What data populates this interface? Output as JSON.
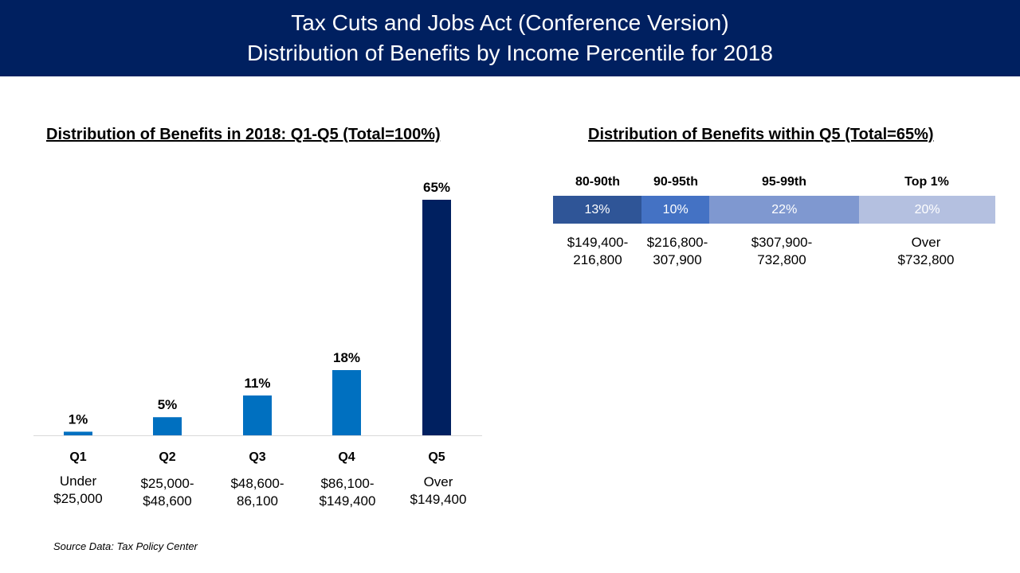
{
  "header": {
    "title_line1": "Tax Cuts and Jobs Act (Conference Version)",
    "title_line2": "Distribution of Benefits by Income Percentile for 2018"
  },
  "left_chart": {
    "title": "Distribution of Benefits in 2018: Q1-Q5 (Total=100%)",
    "ranges": [
      [
        "Under",
        "$25,000"
      ],
      [
        "$25,000-",
        "$48,600"
      ],
      [
        "$48,600-",
        "86,100"
      ],
      [
        "$86,100-",
        "$149,400"
      ],
      [
        "Over",
        "$149,400"
      ]
    ]
  },
  "right_chart": {
    "title": "Distribution of Benefits within Q5 (Total=65%)",
    "segments": [
      {
        "label": "80-90th",
        "value_label": "13%",
        "range_line1": "$149,400-",
        "range_line2": "216,800"
      },
      {
        "label": "90-95th",
        "value_label": "10%",
        "range_line1": "$216,800-",
        "range_line2": "307,900"
      },
      {
        "label": "95-99th",
        "value_label": "22%",
        "range_line1": "$307,900-",
        "range_line2": "732,800"
      },
      {
        "label": "Top 1%",
        "value_label": "20%",
        "range_line1": "Over",
        "range_line2": "$732,800"
      }
    ]
  },
  "chart_data": [
    {
      "type": "bar",
      "title": "Distribution of Benefits in 2018: Q1-Q5 (Total=100%)",
      "categories": [
        "Q1",
        "Q2",
        "Q3",
        "Q4",
        "Q5"
      ],
      "values": [
        1,
        5,
        11,
        18,
        65
      ],
      "value_labels": [
        "1%",
        "5%",
        "11%",
        "18%",
        "65%"
      ],
      "ylim": [
        0,
        65
      ],
      "grid": false,
      "colors": [
        "#0070C0",
        "#0070C0",
        "#0070C0",
        "#0070C0",
        "#002060"
      ]
    },
    {
      "type": "bar",
      "orientation": "horizontal-stacked",
      "title": "Distribution of Benefits within Q5 (Total=65%)",
      "categories": [
        "80-90th",
        "90-95th",
        "95-99th",
        "Top 1%"
      ],
      "values": [
        13,
        10,
        22,
        20
      ],
      "value_labels": [
        "13%",
        "10%",
        "22%",
        "20%"
      ],
      "colors": [
        "#2F5597",
        "#4472C4",
        "#7F98D0",
        "#B4C0E0"
      ]
    }
  ],
  "source": "Source Data:  Tax Policy Center"
}
